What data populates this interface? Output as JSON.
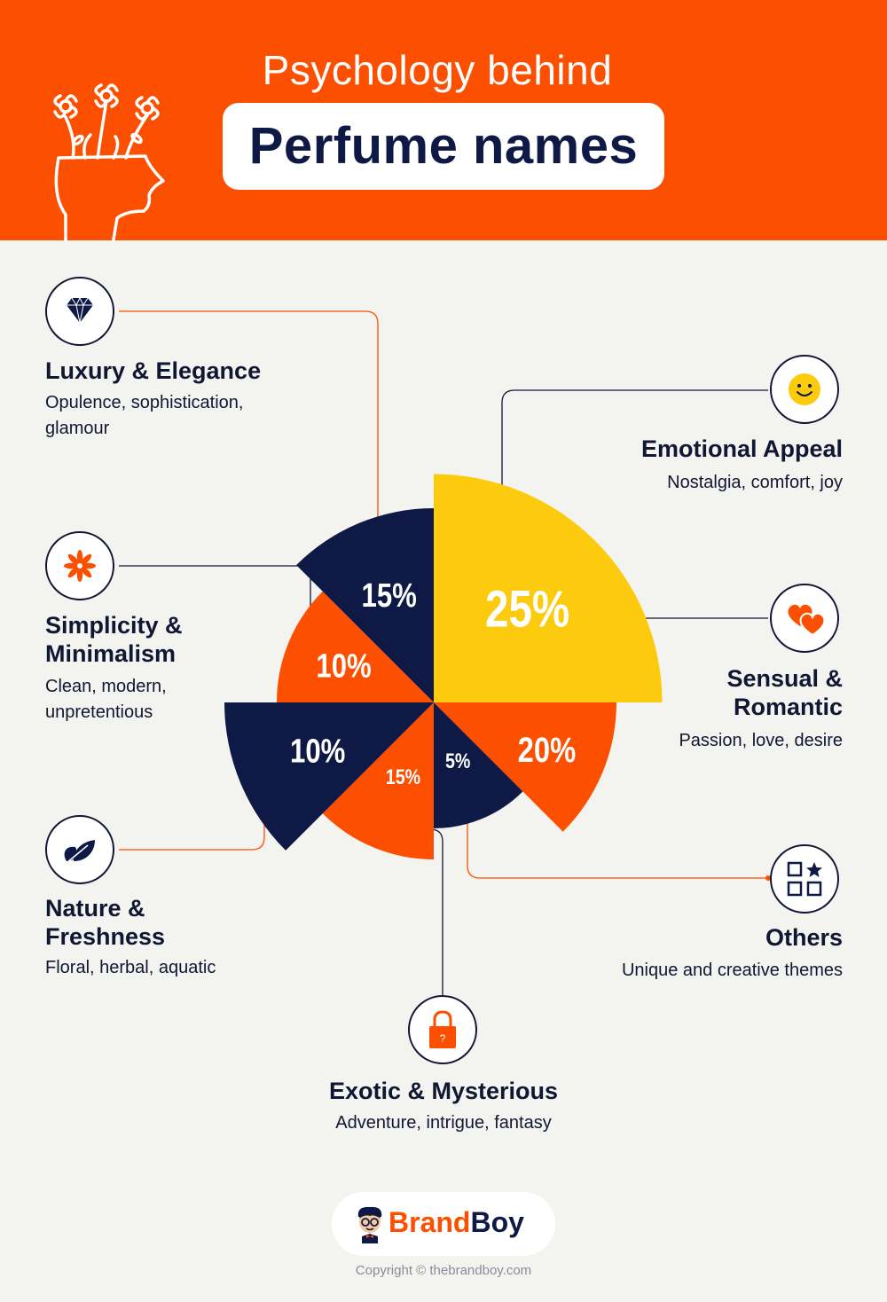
{
  "header": {
    "subtitle": "Psychology behind",
    "title": "Perfume names"
  },
  "colors": {
    "orange": "#fc5000",
    "navy": "#0e1a45",
    "yellow": "#fccb0e",
    "background": "#f3f3ef"
  },
  "categories": [
    {
      "name": "Luxury & Elegance",
      "description": "Opulence, sophistication, glamour",
      "icon": "diamond-icon"
    },
    {
      "name": "Emotional Appeal",
      "description": "Nostalgia, comfort, joy",
      "icon": "smiley-icon"
    },
    {
      "name": "Simplicity & Minimalism",
      "description": "Clean, modern, unpretentious",
      "icon": "starburst-icon"
    },
    {
      "name": "Sensual & Romantic",
      "description": "Passion, love, desire",
      "icon": "hearts-icon"
    },
    {
      "name": "Nature & Freshness",
      "description": "Floral, herbal, aquatic",
      "icon": "leaf-icon"
    },
    {
      "name": "Others",
      "description": "Unique and creative themes",
      "icon": "grid-star-icon"
    },
    {
      "name": "Exotic & Mysterious",
      "description": "Adventure, intrigue, fantasy",
      "icon": "lock-icon"
    }
  ],
  "chart_data": {
    "type": "pie",
    "variant": "polar-area",
    "slices": [
      {
        "category": "Emotional Appeal",
        "value": 25,
        "label": "25%",
        "color": "#fccb0e"
      },
      {
        "category": "Sensual & Romantic",
        "value": 20,
        "label": "20%",
        "color": "#fc5000"
      },
      {
        "category": "Others",
        "value": 5,
        "label": "5%",
        "color": "#0e1a45"
      },
      {
        "category": "Exotic & Mysterious",
        "value": 15,
        "label": "15%",
        "color": "#fc5000"
      },
      {
        "category": "Nature & Freshness",
        "value": 10,
        "label": "10%",
        "color": "#0e1a45"
      },
      {
        "category": "Simplicity & Minimalism",
        "value": 10,
        "label": "10%",
        "color": "#fc5000"
      },
      {
        "category": "Luxury & Elegance",
        "value": 15,
        "label": "15%",
        "color": "#0e1a45"
      }
    ]
  },
  "brand": {
    "name_part1": "Brand",
    "name_part2": "Boy",
    "copyright": "Copyright © thebrandboy.com"
  }
}
